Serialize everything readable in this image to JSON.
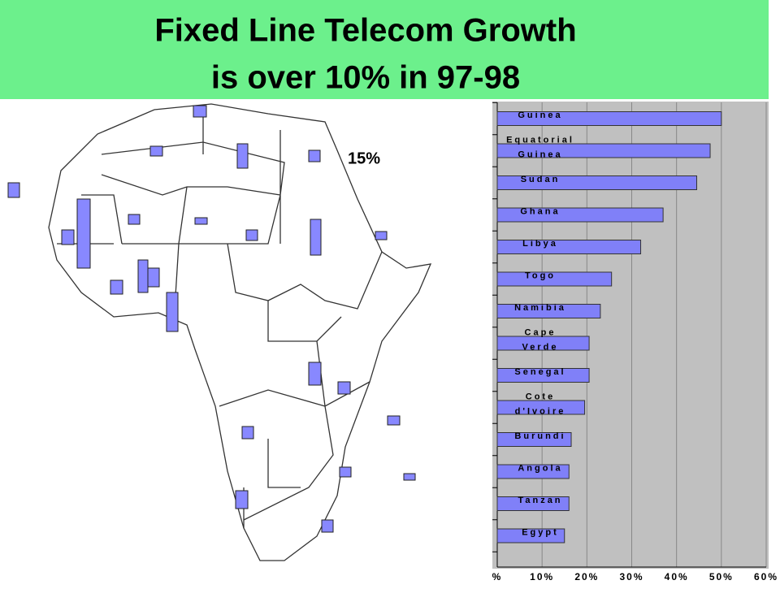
{
  "chart_data": {
    "type": "bar",
    "orientation": "horizontal",
    "title": "Fixed Line Telecom Growth",
    "subtitle": "is over 10% in 97-98",
    "map_annotation": "15%",
    "categories": [
      "Guinea",
      "Equatorial Guinea",
      "Sudan",
      "Ghana",
      "Libya",
      "Togo",
      "Namibia",
      "Cape Verde",
      "Senegal",
      "Cote d'Ivoire",
      "Burundi",
      "Angola",
      "Tanzan",
      "Egypt"
    ],
    "values": [
      50,
      47.5,
      44.5,
      37,
      32,
      25.5,
      23,
      20.5,
      20.5,
      19.5,
      16.5,
      16,
      16,
      15
    ],
    "color": "#8080f8",
    "xlim": [
      0,
      60
    ],
    "xticks": [
      {
        "value": 0,
        "label": "%"
      },
      {
        "value": 10,
        "label": "10%"
      },
      {
        "value": 20,
        "label": "20%"
      },
      {
        "value": 30,
        "label": "30%"
      },
      {
        "value": 40,
        "label": "40%"
      },
      {
        "value": 50,
        "label": "50%"
      },
      {
        "value": 60,
        "label": "60%"
      }
    ],
    "grid": true
  }
}
